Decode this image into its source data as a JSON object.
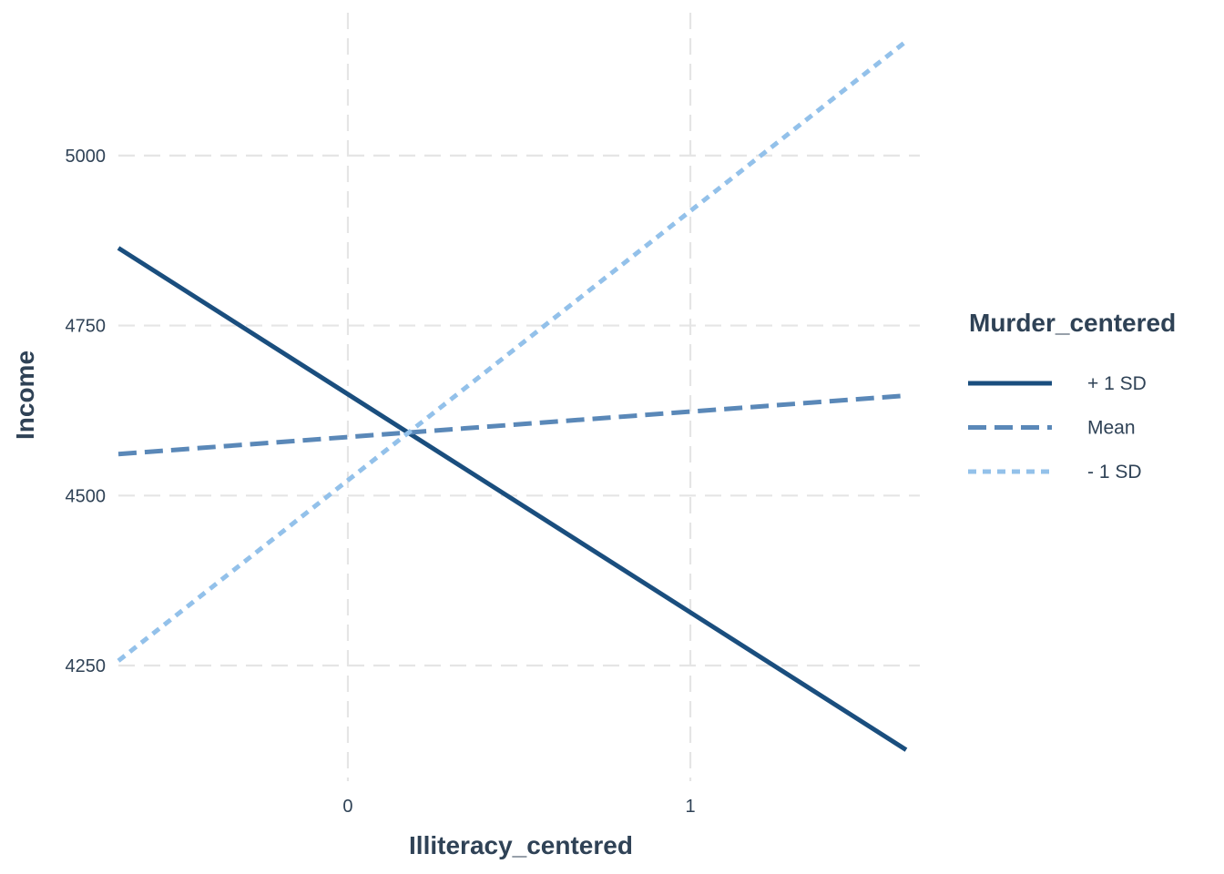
{
  "chart_data": {
    "type": "line",
    "xlabel": "Illiteracy_centered",
    "ylabel": "Income",
    "xlim": [
      -0.67,
      1.67
    ],
    "ylim": [
      4080,
      5210
    ],
    "x_ticks": [
      0,
      1
    ],
    "y_ticks": [
      4250,
      4500,
      4750,
      5000
    ],
    "grid": true,
    "line_style": "dashed",
    "legend": {
      "title": "Murder_centered",
      "placement": "right"
    },
    "series": [
      {
        "name": "+ 1 SD",
        "color": "#1a4e7e",
        "dash": "solid",
        "x": [
          -0.67,
          1.63
        ],
        "y": [
          4864,
          4126
        ]
      },
      {
        "name": "Mean",
        "color": "#5a88b8",
        "dash": "dashed",
        "x": [
          -0.67,
          1.63
        ],
        "y": [
          4561,
          4647
        ]
      },
      {
        "name": "- 1 SD",
        "color": "#93c1ea",
        "dash": "dotted",
        "x": [
          -0.67,
          1.63
        ],
        "y": [
          4257,
          5168
        ]
      }
    ]
  }
}
